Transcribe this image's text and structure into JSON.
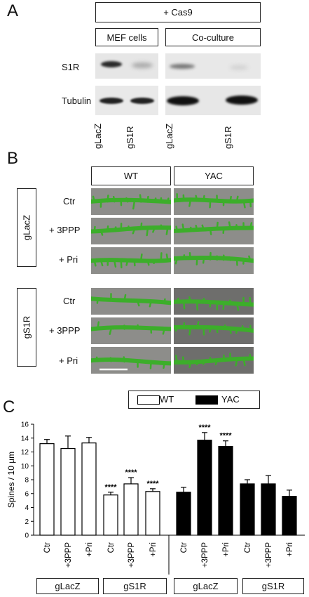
{
  "panel_a": {
    "letter": "A",
    "cas9_label": "+ Cas9",
    "mef_label": "MEF cells",
    "coculture_label": "Co-culture",
    "rows": [
      "S1R",
      "Tubulin"
    ],
    "lanes": [
      "gLacZ",
      "gS1R",
      "gLacZ",
      "gS1R"
    ]
  },
  "panel_b": {
    "letter": "B",
    "col_headers": [
      "WT",
      "YAC"
    ],
    "groups": [
      "gLacZ",
      "gS1R"
    ],
    "row_labels": [
      "Ctr",
      "+ 3PPP",
      "+ Pri",
      "Ctr",
      "+ 3PPP",
      "+ Pri"
    ],
    "dendrite_color": "#3cae2a"
  },
  "panel_c": {
    "letter": "C",
    "legend": [
      "WT",
      "YAC"
    ],
    "group_boxes": [
      "gLacZ",
      "gS1R",
      "gLacZ",
      "gS1R"
    ],
    "colors": {
      "WT": "#ffffff",
      "YAC": "#000000"
    }
  },
  "chart_data": {
    "type": "bar",
    "ylabel": "Spines / 10 µm",
    "ylim": [
      0,
      16
    ],
    "yticks": [
      0,
      2,
      4,
      6,
      8,
      10,
      12,
      14,
      16
    ],
    "categories": [
      "Ctr",
      "+3PPP",
      "+Pri",
      "Ctr",
      "+3PPP",
      "+Pri",
      "Ctr",
      "+3PPP",
      "+Pri",
      "Ctr",
      "+3PPP",
      "+Pri"
    ],
    "values": [
      13.2,
      12.5,
      13.3,
      5.8,
      7.4,
      6.3,
      6.2,
      13.7,
      12.8,
      7.4,
      7.4,
      5.6
    ],
    "errors": [
      0.6,
      1.8,
      0.8,
      0.4,
      0.9,
      0.4,
      0.7,
      1.1,
      0.8,
      0.6,
      1.2,
      0.9
    ],
    "fill": [
      "WT",
      "WT",
      "WT",
      "WT",
      "WT",
      "WT",
      "YAC",
      "YAC",
      "YAC",
      "YAC",
      "YAC",
      "YAC"
    ],
    "annotations": [
      "",
      "",
      "",
      "****",
      "****",
      "****",
      "",
      "****",
      "****",
      "",
      "",
      ""
    ]
  }
}
